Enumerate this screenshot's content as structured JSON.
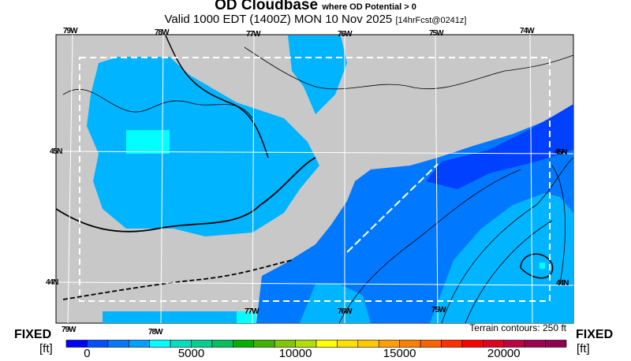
{
  "header": {
    "title": "OD Cloudbase",
    "title_note": "where OD Potential > 0",
    "valid": "Valid 1000 EDT (1400Z) MON 10 Nov 2025",
    "forecast": "[14hrFcst@0241z]"
  },
  "map": {
    "background_color": "#c8c8c8",
    "lon_labels_top": [
      "79W",
      "78W",
      "77W",
      "76W",
      "75W",
      "74W"
    ],
    "lon_labels_bottom": [
      "77W",
      "76W",
      "75W"
    ],
    "lon_labels_below": [
      "79W",
      "78W"
    ],
    "lat_labels": [
      "45N",
      "44N"
    ],
    "terrain_note": "Terrain contours: 250 ft"
  },
  "colorbar": {
    "left_label": "FIXED",
    "right_label": "FIXED",
    "unit": "[ft]",
    "tick_labels": [
      "0",
      "5000",
      "10000",
      "15000",
      "20000"
    ],
    "tick_values": [
      0,
      5000,
      10000,
      15000,
      20000
    ],
    "step": 1000,
    "colors": [
      "#0000ff",
      "#0050ff",
      "#0078ff",
      "#00a0ff",
      "#00ffff",
      "#00e0c0",
      "#00d090",
      "#00c060",
      "#00b000",
      "#40b400",
      "#80c800",
      "#b0e000",
      "#ffff00",
      "#ffe000",
      "#ffc800",
      "#ffa000",
      "#ff8000",
      "#ff6000",
      "#ff3000",
      "#ff0000",
      "#e00020",
      "#c00040",
      "#a00050",
      "#900050"
    ]
  }
}
